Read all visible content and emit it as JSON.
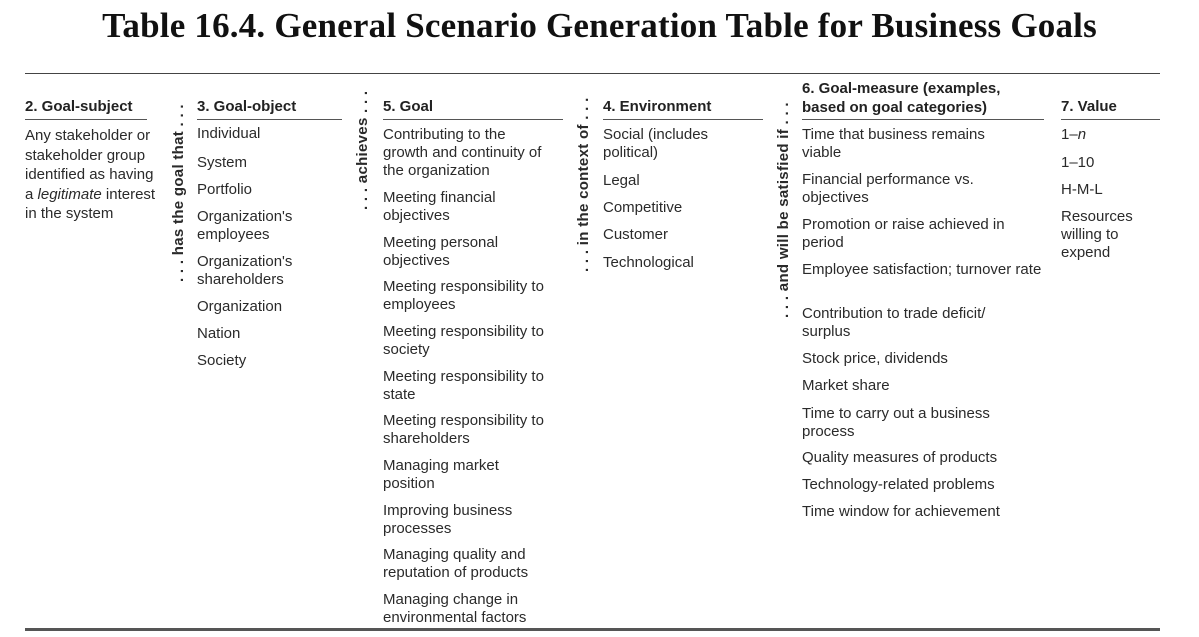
{
  "title": "Table 16.4. General Scenario Generation Table for Business Goals",
  "connectors": [
    ". . . has the goal that . . .",
    ". . . achieves . . .",
    ". . . in the context of . . .",
    ". . . and will be satisfied if . . ."
  ],
  "columns": {
    "subject": {
      "header": "2. Goal-subject",
      "text_pre": "Any stakeholder or stakeholder group identified as having a",
      "text_italic": "legitimate",
      "text_post": "interest in the system"
    },
    "object": {
      "header": "3. Goal-object",
      "items": [
        "Individual",
        "System",
        "Portfolio",
        "Organization's employees",
        "Organization's shareholders",
        "Organization",
        "Nation",
        "Society"
      ]
    },
    "goal": {
      "header": "5. Goal",
      "items": [
        "Contributing to the growth and continuity of the organization",
        "Meeting financial objectives",
        "Meeting personal objectives",
        "Meeting responsibility to employees",
        "Meeting responsibility to society",
        "Meeting responsibility to state",
        "Meeting responsibility to shareholders",
        "Managing market position",
        "Improving business processes",
        "Managing quality and reputation of products",
        "Managing change in environmental factors"
      ]
    },
    "environment": {
      "header": "4. Environment",
      "items": [
        "Social (includes political)",
        "Legal",
        "Competitive",
        "Customer",
        "Technological"
      ]
    },
    "measure": {
      "header": "6. Goal-measure (examples, based on goal categories)",
      "items": [
        "Time that business remains viable",
        "Financial performance vs. objectives",
        "Promotion or raise achieved in period",
        "Employee satisfaction; turnover rate",
        "Contribution to trade deficit/ surplus",
        "Stock price, dividends",
        "Market share",
        "Time to carry out a business process",
        "Quality measures of products",
        "Technology-related problems",
        "Time window for achievement"
      ]
    },
    "value": {
      "header": "7. Value",
      "items": [
        "1–n",
        "1–10",
        "H-M-L",
        "Resources willing to expend"
      ]
    }
  }
}
